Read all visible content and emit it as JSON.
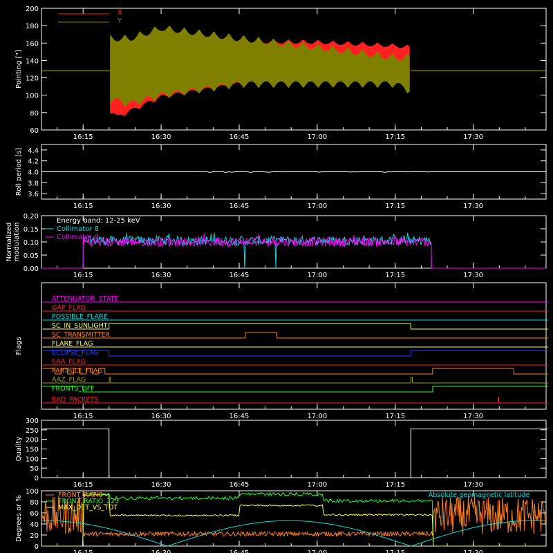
{
  "time_ticks": [
    "16:15",
    "16:30",
    "16:45",
    "17:00",
    "17:15",
    "17:30"
  ],
  "colors": {
    "red": "#ff2020",
    "olive": "#808000",
    "white": "#ffffff",
    "cyan": "#00e0e0",
    "magenta": "#ff00ff",
    "orange": "#ff8020",
    "yellow": "#ffff40",
    "green": "#20ff20",
    "blue": "#2040ff",
    "olive_line": "#a0a000"
  },
  "chart_data": [
    {
      "id": "pointing",
      "type": "area",
      "ylabel": "Pointing [\"]",
      "xlim": [
        "16:07",
        "17:44"
      ],
      "ylim": [
        60,
        200
      ],
      "yticks": [
        60,
        80,
        100,
        120,
        140,
        160,
        180,
        200
      ],
      "legend_position": "top-left",
      "series": [
        {
          "name": "X",
          "color": "#ff2020",
          "envelope": true,
          "t_start": "16:20",
          "t_end": "17:18",
          "upper": [
            [
              16.34,
              165
            ],
            [
              16.36,
              160
            ],
            [
              16.5,
              165
            ],
            [
              16.75,
              165
            ],
            [
              17.0,
              164
            ],
            [
              17.25,
              160
            ],
            [
              17.3,
              158
            ]
          ],
          "lower": [
            [
              16.34,
              78
            ],
            [
              16.36,
              72
            ],
            [
              16.5,
              95
            ],
            [
              16.75,
              110
            ],
            [
              17.0,
              115
            ],
            [
              17.25,
              112
            ],
            [
              17.3,
              110
            ]
          ],
          "baseline": 128
        },
        {
          "name": "Y",
          "color": "#808000",
          "envelope": true,
          "t_start": "16:20",
          "t_end": "17:18",
          "upper": [
            [
              16.34,
              170
            ],
            [
              16.4,
              170
            ],
            [
              16.5,
              182
            ],
            [
              16.75,
              170
            ],
            [
              17.0,
              160
            ],
            [
              17.25,
              148
            ],
            [
              17.3,
              148
            ]
          ],
          "lower": [
            [
              16.34,
              90
            ],
            [
              16.4,
              85
            ],
            [
              16.5,
              95
            ],
            [
              16.75,
              108
            ],
            [
              17.0,
              108
            ],
            [
              17.25,
              108
            ],
            [
              17.3,
              100
            ]
          ],
          "baseline": 128
        }
      ]
    },
    {
      "id": "roll",
      "type": "line",
      "ylabel": "Roll period [s]",
      "ylim": [
        3.5,
        4.5
      ],
      "yticks": [
        "3.6",
        "3.8",
        "4.0",
        "4.2",
        "4.4"
      ],
      "series": [
        {
          "name": "",
          "color": "#ffffff",
          "constant": 4.0,
          "jitter_start": "16:34",
          "jitter_end": "17:23"
        }
      ]
    },
    {
      "id": "modulation",
      "type": "line",
      "ylabel": "Normalized modulation",
      "ylabel_lines": [
        "Normalized",
        "modulation"
      ],
      "ylim": [
        0,
        0.2
      ],
      "yticks": [
        "0.00",
        "0.05",
        "0.10",
        "0.15",
        "0.20"
      ],
      "annotation": "Energy band: 12-25 keV",
      "legend_position": "top-left",
      "t_start": "16:15",
      "t_end": "17:22",
      "series": [
        {
          "name": "Collimator 8",
          "color": "#00e0e0",
          "level": 0.105,
          "dropouts": [
            "16:46",
            "16:52"
          ]
        },
        {
          "name": "Collimator 9",
          "color": "#ff00ff",
          "level": 0.1
        }
      ]
    },
    {
      "id": "flags",
      "type": "line",
      "ylabel": "Flags",
      "flags": [
        {
          "name": "ATTENUATOR_STATE",
          "color": "#ff00ff",
          "segments": [
            [
              16.12,
              0
            ],
            [
              17.74,
              0
            ]
          ]
        },
        {
          "name": "GAP_FLAG",
          "color": "#ff2020",
          "segments": [
            [
              16.12,
              0
            ],
            [
              17.74,
              0
            ]
          ]
        },
        {
          "name": "POSSIBLE_FLARE",
          "color": "#00e0e0",
          "segments": [
            [
              16.12,
              0
            ],
            [
              17.74,
              0
            ]
          ]
        },
        {
          "name": "SC_IN_SUNLIGHT",
          "color": "#ffff40",
          "segments": [
            [
              16.12,
              0
            ],
            [
              16.333,
              0
            ],
            [
              16.333,
              1
            ],
            [
              17.3,
              1
            ],
            [
              17.3,
              0
            ],
            [
              17.74,
              0
            ]
          ]
        },
        {
          "name": "SC_TRANSMITTER",
          "color": "#ff8020",
          "segments": [
            [
              16.12,
              0
            ],
            [
              16.77,
              0
            ],
            [
              16.77,
              1
            ],
            [
              16.87,
              1
            ],
            [
              16.87,
              0
            ],
            [
              17.74,
              0
            ]
          ]
        },
        {
          "name": "FLARE_FLAG",
          "color": "#ffff40",
          "segments": [
            [
              16.12,
              0
            ],
            [
              17.74,
              0
            ]
          ]
        },
        {
          "name": "ECLIPSE_FLAG",
          "color": "#2040ff",
          "segments": [
            [
              16.12,
              1
            ],
            [
              16.333,
              1
            ],
            [
              16.333,
              0
            ],
            [
              17.3,
              0
            ],
            [
              17.3,
              1
            ],
            [
              17.74,
              1
            ]
          ]
        },
        {
          "name": "SAA_FLAG",
          "color": "#ff2020",
          "segments": [
            [
              16.12,
              0
            ],
            [
              17.74,
              0
            ]
          ]
        },
        {
          "name": "PARTICLE_FLAG",
          "color": "#ff8020",
          "segments": [
            [
              16.12,
              1
            ],
            [
              16.33,
              1
            ],
            [
              16.33,
              0
            ],
            [
              17.37,
              0
            ],
            [
              17.37,
              1
            ],
            [
              17.63,
              1
            ],
            [
              17.63,
              0
            ],
            [
              17.74,
              0
            ]
          ]
        },
        {
          "name": "AAZ_FLAG",
          "color": "#a0a000",
          "segments": [
            [
              16.12,
              0
            ],
            [
              16.334,
              0
            ],
            [
              16.334,
              1
            ],
            [
              16.338,
              1
            ],
            [
              16.338,
              0
            ],
            [
              17.3,
              0
            ],
            [
              17.3,
              1
            ],
            [
              17.305,
              1
            ],
            [
              17.305,
              0
            ],
            [
              17.74,
              0
            ]
          ]
        },
        {
          "name": "FRONTS_OFF",
          "color": "#20ff20",
          "segments": [
            [
              16.12,
              1
            ],
            [
              16.25,
              1
            ],
            [
              16.25,
              0
            ],
            [
              17.37,
              0
            ],
            [
              17.37,
              1
            ],
            [
              17.74,
              1
            ]
          ]
        },
        {
          "name": "BAD_PACKETS",
          "color": "#ff2020",
          "segments": [
            [
              16.12,
              0
            ],
            [
              17.58,
              0
            ],
            [
              17.58,
              1
            ],
            [
              17.582,
              1
            ],
            [
              17.582,
              0
            ],
            [
              17.74,
              0
            ]
          ]
        }
      ]
    },
    {
      "id": "quality",
      "type": "line",
      "ylabel": "Quality",
      "ylim": [
        0,
        300
      ],
      "yticks": [
        0,
        50,
        100,
        150,
        200,
        250,
        300
      ],
      "series": [
        {
          "name": "",
          "color": "#ffffff",
          "points": [
            [
              16.12,
              255
            ],
            [
              16.333,
              255
            ],
            [
              16.333,
              0
            ],
            [
              17.3,
              0
            ],
            [
              17.3,
              255
            ],
            [
              17.74,
              255
            ]
          ]
        }
      ]
    },
    {
      "id": "ratios",
      "type": "line",
      "ylabel": "Degrees or %",
      "ylim": [
        0,
        100
      ],
      "yticks": [
        0,
        20,
        40,
        60,
        80,
        100
      ],
      "legend_position": "top-left",
      "series": [
        {
          "name": "FRONT_RATIO",
          "color": "#ff8020"
        },
        {
          "name": "FRONT_RATIO_225",
          "color": "#20ff20"
        },
        {
          "name": "MAX_DET_VS_TOT",
          "color": "#ffff40"
        },
        {
          "name": "Absolute geomagnetic latitude",
          "color": "#00e0e0"
        }
      ]
    }
  ]
}
